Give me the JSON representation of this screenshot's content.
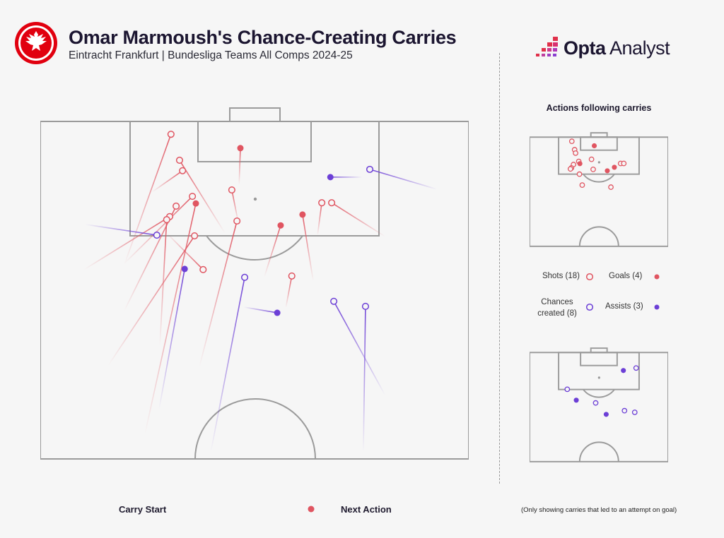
{
  "header": {
    "title": "Omar Marmoush's Chance-Creating Carries",
    "subtitle": "Eintracht Frankfurt | Bundesliga Teams All Comps 2024-25"
  },
  "brand": {
    "word1": "Opta",
    "word2": "Analyst"
  },
  "colors": {
    "shot": "#e05561",
    "chance": "#6c3fd6",
    "pitch_line": "#9b9b9b",
    "background": "#f6f6f6"
  },
  "side_panel": {
    "title": "Actions following carries",
    "legend": {
      "shots": "Shots (18)",
      "goals": "Goals (4)",
      "chances_line1": "Chances",
      "chances_line2": "created (8)",
      "assists": "Assists (3)"
    }
  },
  "bottom_legend": {
    "start": "Carry Start",
    "end": "Next Action",
    "footnote": "(Only showing carries that led to an attempt on goal)"
  },
  "chart_data": {
    "type": "scatter",
    "title": "Omar Marmoush's Chance-Creating Carries",
    "coordinate_system": "attacking half, x 0-100 left to right, y 0-100 from goal line to halfway line",
    "carries": [
      {
        "outcome": "shot",
        "start": [
          19.6,
          42.5
        ],
        "end": [
          30.5,
          3.8
        ]
      },
      {
        "outcome": "shot",
        "start": [
          43.1,
          33.1
        ],
        "end": [
          32.5,
          11.5
        ]
      },
      {
        "outcome": "shot",
        "start": [
          26.1,
          20.9
        ],
        "end": [
          33.2,
          14.6
        ]
      },
      {
        "outcome": "shot",
        "start": [
          19.6,
          42.1
        ],
        "end": [
          35.5,
          22.2
        ]
      },
      {
        "outcome": "shot",
        "start": [
          19.6,
          56.1
        ],
        "end": [
          31.7,
          25.1
        ]
      },
      {
        "outcome": "shot",
        "start": [
          10.2,
          43.9
        ],
        "end": [
          30.2,
          28.2
        ]
      },
      {
        "outcome": "shot",
        "start": [
          27.9,
          66.5
        ],
        "end": [
          29.5,
          29.1
        ]
      },
      {
        "outcome": "shot",
        "start": [
          29.5,
          33.1
        ],
        "end": [
          38.0,
          43.9
        ]
      },
      {
        "outcome": "shot",
        "start": [
          15.8,
          72.4
        ],
        "end": [
          36.0,
          33.9
        ]
      },
      {
        "outcome": "shot",
        "start": [
          46.2,
          29.9
        ],
        "end": [
          44.7,
          20.3
        ]
      },
      {
        "outcome": "shot",
        "start": [
          37.1,
          72.8
        ],
        "end": [
          45.9,
          29.5
        ]
      },
      {
        "outcome": "shot",
        "start": [
          57.3,
          55.2
        ],
        "end": [
          58.7,
          45.8
        ]
      },
      {
        "outcome": "shot",
        "start": [
          64.7,
          33.7
        ],
        "end": [
          65.7,
          24.1
        ]
      },
      {
        "outcome": "shot",
        "start": [
          80.5,
          34.1
        ],
        "end": [
          68.0,
          24.1
        ]
      },
      {
        "outcome": "goal",
        "start": [
          46.4,
          18.8
        ],
        "end": [
          46.7,
          7.9
        ]
      },
      {
        "outcome": "goal",
        "start": [
          24.4,
          92.7
        ],
        "end": [
          36.3,
          24.3
        ]
      },
      {
        "outcome": "goal",
        "start": [
          52.3,
          46.0
        ],
        "end": [
          56.1,
          30.8
        ]
      },
      {
        "outcome": "goal",
        "start": [
          63.7,
          47.3
        ],
        "end": [
          61.2,
          27.6
        ]
      },
      {
        "outcome": "chance",
        "start": [
          92.6,
          20.1
        ],
        "end": [
          76.9,
          14.2
        ]
      },
      {
        "outcome": "chance",
        "start": [
          10.4,
          30.5
        ],
        "end": [
          27.2,
          33.7
        ]
      },
      {
        "outcome": "chance",
        "start": [
          39.8,
          97.9
        ],
        "end": [
          47.7,
          46.2
        ]
      },
      {
        "outcome": "chance",
        "start": [
          80.5,
          81.2
        ],
        "end": [
          68.5,
          53.3
        ]
      },
      {
        "outcome": "chance",
        "start": [
          75.4,
          97.9
        ],
        "end": [
          75.9,
          54.8
        ]
      },
      {
        "outcome": "assist",
        "start": [
          75.1,
          16.5
        ],
        "end": [
          67.7,
          16.5
        ]
      },
      {
        "outcome": "assist",
        "start": [
          27.7,
          85.4
        ],
        "end": [
          33.7,
          43.7
        ]
      },
      {
        "outcome": "assist",
        "start": [
          47.5,
          55.0
        ],
        "end": [
          55.3,
          56.7
        ]
      }
    ]
  }
}
